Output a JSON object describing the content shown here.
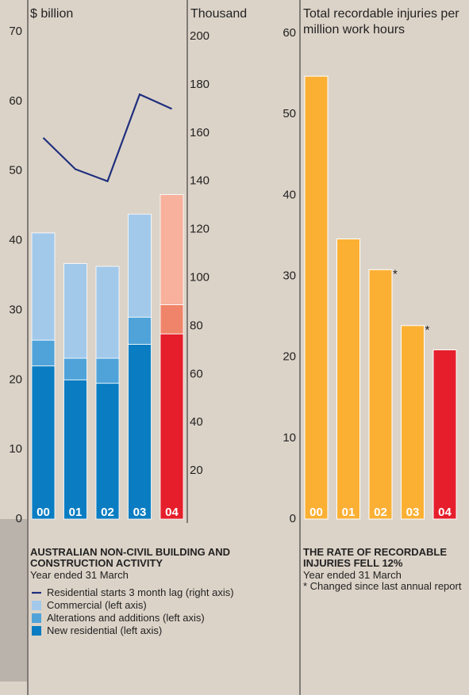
{
  "chart_data": [
    {
      "type": "stacked-bar-line",
      "title": "AUSTRALIAN NON-CIVIL BUILDING AND CONSTRUCTION ACTIVITY",
      "subtitle": "Year ended 31 March",
      "y_label": "$ billion",
      "y2_label": "Thousand",
      "categories": [
        "00",
        "01",
        "02",
        "03",
        "04"
      ],
      "ylim": [
        0,
        70
      ],
      "yticks": [
        0,
        10,
        20,
        30,
        40,
        50,
        60,
        70
      ],
      "y2lim": [
        0,
        200
      ],
      "y2ticks": [
        20,
        40,
        60,
        80,
        100,
        120,
        140,
        160,
        180,
        200
      ],
      "series": [
        {
          "name": "New residential (left axis)",
          "type": "bar",
          "color": "#0a7dc2",
          "colors": [
            "#0a7dc2",
            "#0a7dc2",
            "#0a7dc2",
            "#0a7dc2",
            "#e61e2b"
          ],
          "values": [
            22.0,
            20.0,
            19.5,
            25.1,
            26.6
          ]
        },
        {
          "name": "Alterations and additions (left axis)",
          "type": "bar",
          "color": "#4fa3d9",
          "colors": [
            "#4fa3d9",
            "#4fa3d9",
            "#4fa3d9",
            "#4fa3d9",
            "#f0846a"
          ],
          "values": [
            3.7,
            3.1,
            3.6,
            3.9,
            4.2
          ]
        },
        {
          "name": "Commercial (left axis)",
          "type": "bar",
          "color": "#a3c9ea",
          "colors": [
            "#a3c9ea",
            "#a3c9ea",
            "#a3c9ea",
            "#a3c9ea",
            "#f7b19c"
          ],
          "values": [
            15.4,
            13.6,
            13.2,
            14.8,
            15.8
          ]
        },
        {
          "name": "Residential starts 3 month lag (right axis)",
          "type": "line",
          "axis": "y2",
          "color": "#1e2f7e",
          "values": [
            158,
            145,
            140,
            176,
            170
          ]
        }
      ]
    },
    {
      "type": "bar",
      "title": "THE RATE OF RECORDABLE INJURIES FELL 12%",
      "subtitle": "Year ended 31 March",
      "footnote": "* Changed since last annual report",
      "y_label": "Total recordable injuries per million work hours",
      "categories": [
        "00",
        "01",
        "02",
        "03",
        "04"
      ],
      "values": [
        54.7,
        34.6,
        30.8,
        23.9,
        20.9
      ],
      "notes": [
        null,
        null,
        "*",
        "*",
        null
      ],
      "colors": [
        "#fbb034",
        "#fbb034",
        "#fbb034",
        "#fbb034",
        "#e61e2b"
      ],
      "ylim": [
        0,
        60
      ],
      "yticks": [
        0,
        10,
        20,
        30,
        40,
        50,
        60
      ]
    }
  ]
}
